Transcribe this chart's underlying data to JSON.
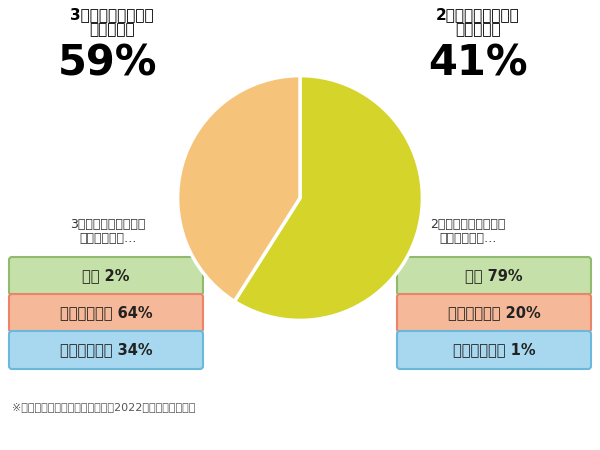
{
  "pie_values": [
    59,
    41
  ],
  "pie_colors": [
    "#d4d42a",
    "#f5c47a"
  ],
  "left_title_line1": "3口タイプの交換は",
  "left_title_line2": "全体のうち",
  "right_title_line1": "2口タイプの交換は",
  "right_title_line2": "全体のうち",
  "left_pct": "59%",
  "right_pct": "41%",
  "left_subtitle_line1": "3口タイプ交換工事の",
  "left_subtitle_line2": "価格帯割合は…",
  "right_subtitle_line1": "2口タイプ交換工事の",
  "right_subtitle_line2": "価格帯割合は…",
  "left_labels": [
    "激安 2%",
    "スタンダード 64%",
    "ハイグレード 34%"
  ],
  "right_labels": [
    "激安 79%",
    "スタンダード 20%",
    "ハイグレード 1%"
  ],
  "box_colors": [
    "#c5e0a8",
    "#f5b899",
    "#a8d8ef"
  ],
  "box_edge_colors": [
    "#8fba70",
    "#e8856a",
    "#6ab8dc"
  ],
  "footnote": "※当社運営サイト全体において、2022年の販売実績より",
  "bg_color": "#ffffff"
}
